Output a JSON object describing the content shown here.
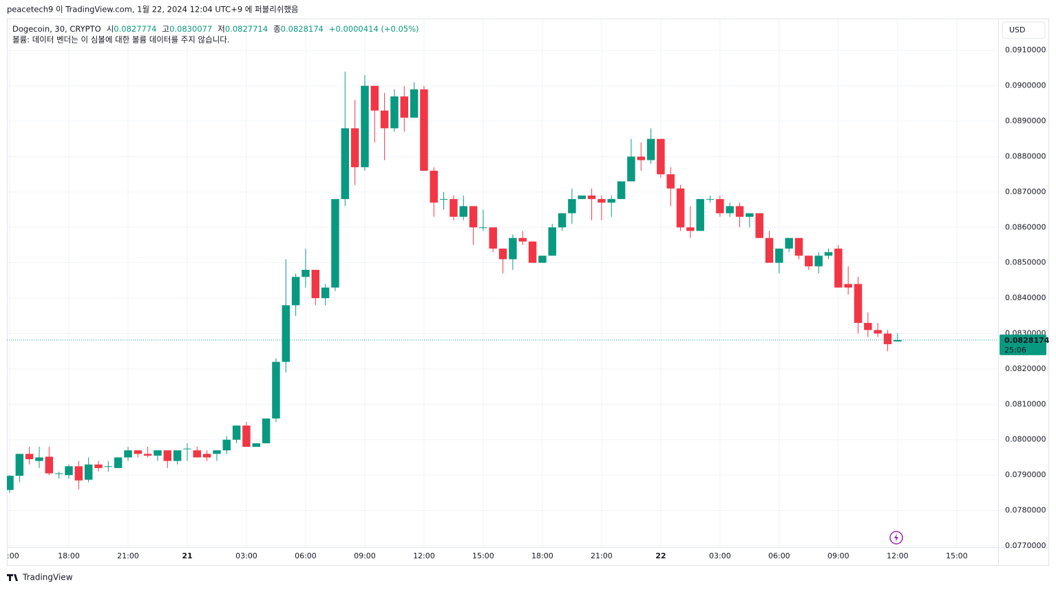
{
  "header": {
    "published": "peacetech9 이 TradingView.com, 1월 22, 2024 12:04 UTC+9 에 퍼블리쉬했음"
  },
  "footer": {
    "brand": "TradingView"
  },
  "chart_data": {
    "type": "candlestick",
    "symbol": "Dogecoin, 30, CRYPTO",
    "legend_labels": {
      "open": "시",
      "high": "고",
      "low": "저",
      "close": "종"
    },
    "change": "+0.0000414 (+0.05%)",
    "notice": "볼륨: 데이터 벤더는 이 심볼에 대한 볼륨 데이터를 주지 않습니다.",
    "currency": "USD",
    "countdown": "25:06",
    "up_color": "#089981",
    "down_color": "#f23645",
    "grid": true,
    "open": [
      0.07858,
      0.07898,
      0.0796,
      0.0794,
      0.07952,
      0.07905,
      0.079,
      0.07925,
      0.07887,
      0.0793,
      0.07925,
      0.0792,
      0.0795,
      0.0797,
      0.0796,
      0.07955,
      0.0797,
      0.0794,
      0.07975,
      0.0797,
      0.0796,
      0.0796,
      0.0797,
      0.08,
      0.0804,
      0.0798,
      0.0799,
      0.0806,
      0.0822,
      0.0838,
      0.0846,
      0.0848,
      0.084,
      0.0843,
      0.0868,
      0.0888,
      0.0877,
      0.09,
      0.0893,
      0.0888,
      0.0897,
      0.0891,
      0.0899,
      0.0876,
      0.0868,
      0.0868,
      0.0863,
      0.0866,
      0.086,
      0.086,
      0.0854,
      0.0851,
      0.0857,
      0.0856,
      0.085,
      0.0852,
      0.086,
      0.0864,
      0.0868,
      0.0869,
      0.0868,
      0.0867,
      0.0868,
      0.0873,
      0.088,
      0.0879,
      0.0885,
      0.0875,
      0.0871,
      0.086,
      0.0859,
      0.0868,
      0.0868,
      0.0864,
      0.0866,
      0.0863,
      0.0864,
      0.0857,
      0.085,
      0.0854,
      0.0857,
      0.0852,
      0.0849,
      0.0852,
      0.0854,
      0.0844,
      0.0844,
      0.0833,
      0.0831,
      0.083,
      0.0827774
    ],
    "high": [
      0.079,
      0.0796,
      0.0798,
      0.0798,
      0.0798,
      0.0791,
      0.0793,
      0.0794,
      0.0795,
      0.0794,
      0.0794,
      0.0795,
      0.0798,
      0.0797,
      0.0798,
      0.0797,
      0.0797,
      0.0797,
      0.0799,
      0.0798,
      0.0797,
      0.0797,
      0.0801,
      0.0804,
      0.0805,
      0.0799,
      0.0806,
      0.0823,
      0.0851,
      0.0847,
      0.0854,
      0.0848,
      0.0844,
      0.0868,
      0.0904,
      0.0896,
      0.0903,
      0.09,
      0.0898,
      0.0899,
      0.09,
      0.0901,
      0.09,
      0.0877,
      0.087,
      0.0869,
      0.0869,
      0.0866,
      0.0865,
      0.086,
      0.0854,
      0.0858,
      0.0859,
      0.0856,
      0.0852,
      0.0861,
      0.0864,
      0.0871,
      0.0869,
      0.0871,
      0.0869,
      0.0869,
      0.0873,
      0.0885,
      0.0884,
      0.0888,
      0.0885,
      0.0877,
      0.0872,
      0.0866,
      0.0868,
      0.0869,
      0.0869,
      0.0867,
      0.0867,
      0.0864,
      0.0864,
      0.0859,
      0.0854,
      0.0857,
      0.0857,
      0.0852,
      0.0853,
      0.0854,
      0.0855,
      0.0849,
      0.0846,
      0.0836,
      0.0833,
      0.0831,
      0.0830077
    ],
    "low": [
      0.0785,
      0.0788,
      0.0793,
      0.0792,
      0.079,
      0.0789,
      0.0789,
      0.0786,
      0.0788,
      0.0791,
      0.0791,
      0.0792,
      0.0794,
      0.0795,
      0.0795,
      0.0794,
      0.0792,
      0.0793,
      0.0794,
      0.0795,
      0.0794,
      0.0794,
      0.0796,
      0.0799,
      0.0798,
      0.0798,
      0.0799,
      0.0805,
      0.0819,
      0.0835,
      0.0843,
      0.0838,
      0.0838,
      0.0842,
      0.0866,
      0.0872,
      0.0876,
      0.0884,
      0.0879,
      0.0887,
      0.0887,
      0.0891,
      0.0876,
      0.0863,
      0.0865,
      0.0862,
      0.0862,
      0.0855,
      0.0859,
      0.0853,
      0.0847,
      0.0848,
      0.0855,
      0.085,
      0.085,
      0.0852,
      0.0859,
      0.0861,
      0.0868,
      0.0862,
      0.0862,
      0.0863,
      0.0868,
      0.0873,
      0.0876,
      0.0878,
      0.0874,
      0.0866,
      0.0859,
      0.0857,
      0.0859,
      0.0867,
      0.0863,
      0.0863,
      0.086,
      0.086,
      0.0857,
      0.085,
      0.0847,
      0.0853,
      0.0851,
      0.0848,
      0.0847,
      0.0851,
      0.0843,
      0.0841,
      0.083,
      0.0829,
      0.0829,
      0.0825,
      0.0827714
    ],
    "close": [
      0.07898,
      0.0796,
      0.07945,
      0.0795,
      0.07905,
      0.07905,
      0.07925,
      0.07885,
      0.0793,
      0.0792,
      0.07925,
      0.0795,
      0.0797,
      0.0796,
      0.07955,
      0.0797,
      0.0794,
      0.0797,
      0.07975,
      0.0795,
      0.0795,
      0.0797,
      0.08,
      0.0804,
      0.0798,
      0.0799,
      0.0806,
      0.0822,
      0.0838,
      0.0846,
      0.0848,
      0.084,
      0.0843,
      0.0868,
      0.0888,
      0.0877,
      0.09,
      0.0893,
      0.0888,
      0.0897,
      0.0891,
      0.0899,
      0.0876,
      0.0867,
      0.0868,
      0.0863,
      0.0866,
      0.086,
      0.086,
      0.0854,
      0.0851,
      0.0857,
      0.0856,
      0.085,
      0.0852,
      0.086,
      0.0864,
      0.0868,
      0.0869,
      0.0868,
      0.0867,
      0.0868,
      0.0873,
      0.088,
      0.0879,
      0.0885,
      0.0875,
      0.0871,
      0.086,
      0.0859,
      0.0868,
      0.0868,
      0.0864,
      0.0866,
      0.0863,
      0.0864,
      0.0857,
      0.085,
      0.0854,
      0.0857,
      0.0852,
      0.0849,
      0.0852,
      0.0853,
      0.0843,
      0.0843,
      0.0833,
      0.0831,
      0.083,
      0.0827,
      0.0828174
    ],
    "ylim": [
      0.07696,
      0.09188
    ],
    "yticks": [
      {
        "value": 0.077,
        "label": "0.0770000"
      },
      {
        "value": 0.078,
        "label": "0.0780000"
      },
      {
        "value": 0.079,
        "label": "0.0790000"
      },
      {
        "value": 0.08,
        "label": "0.0800000"
      },
      {
        "value": 0.081,
        "label": "0.0810000"
      },
      {
        "value": 0.082,
        "label": "0.0820000"
      },
      {
        "value": 0.083,
        "label": "0.0830000"
      },
      {
        "value": 0.084,
        "label": "0.0840000"
      },
      {
        "value": 0.085,
        "label": "0.0850000"
      },
      {
        "value": 0.086,
        "label": "0.0860000"
      },
      {
        "value": 0.087,
        "label": "0.0870000"
      },
      {
        "value": 0.088,
        "label": "0.0880000"
      },
      {
        "value": 0.089,
        "label": "0.0890000"
      },
      {
        "value": 0.09,
        "label": "0.0900000"
      },
      {
        "value": 0.091,
        "label": "0.0910000"
      }
    ],
    "xlim": [
      -0.28,
      100.2
    ],
    "xticks": [
      {
        "value": 0,
        "label": ":00"
      },
      {
        "value": 6,
        "label": "18:00"
      },
      {
        "value": 12,
        "label": "21:00"
      },
      {
        "value": 18,
        "label": "21"
      },
      {
        "value": 24,
        "label": "03:00"
      },
      {
        "value": 30,
        "label": "06:00"
      },
      {
        "value": 36,
        "label": "09:00"
      },
      {
        "value": 42,
        "label": "12:00"
      },
      {
        "value": 48,
        "label": "15:00"
      },
      {
        "value": 54,
        "label": "18:00"
      },
      {
        "value": 60,
        "label": "21:00"
      },
      {
        "value": 66,
        "label": "22"
      },
      {
        "value": 72,
        "label": "03:00"
      },
      {
        "value": 78,
        "label": "06:00"
      },
      {
        "value": 84,
        "label": "09:00"
      },
      {
        "value": 90,
        "label": "12:00"
      },
      {
        "value": 96,
        "label": "15:00"
      }
    ]
  }
}
